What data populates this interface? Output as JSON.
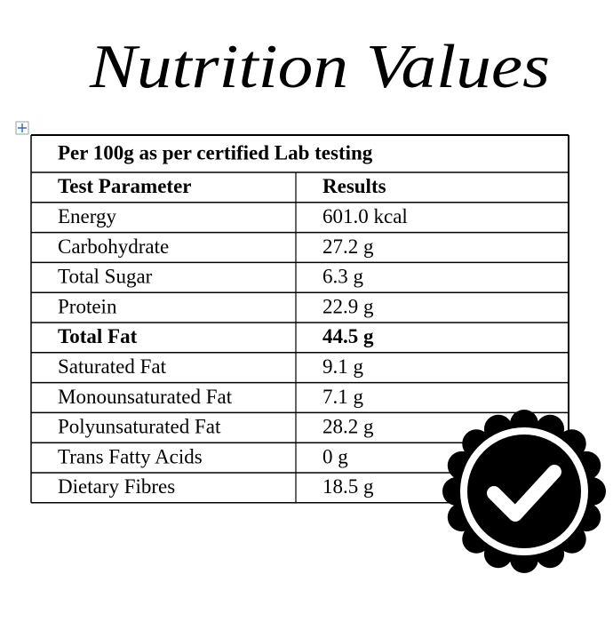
{
  "header": {
    "title": "Nutrition Values"
  },
  "table": {
    "caption": "Per 100g as per certified Lab testing",
    "columns": [
      "Test Parameter",
      "Results"
    ],
    "rows": [
      {
        "parameter": "Energy",
        "result": "601.0 kcal",
        "bold": false
      },
      {
        "parameter": "Carbohydrate",
        "result": "27.2 g",
        "bold": false
      },
      {
        "parameter": "Total Sugar",
        "result": "6.3 g",
        "bold": false
      },
      {
        "parameter": "Protein",
        "result": "22.9 g",
        "bold": false
      },
      {
        "parameter": "Total Fat",
        "result": "44.5 g",
        "bold": true
      },
      {
        "parameter": "Saturated Fat",
        "result": "9.1 g",
        "bold": false
      },
      {
        "parameter": "Monounsaturated Fat",
        "result": "7.1 g",
        "bold": false
      },
      {
        "parameter": "Polyunsaturated Fat",
        "result": "28.2 g",
        "bold": false
      },
      {
        "parameter": "Trans Fatty Acids",
        "result": "0 g",
        "bold": false
      },
      {
        "parameter": "Dietary Fibres",
        "result": "18.5 g",
        "bold": false
      }
    ]
  }
}
